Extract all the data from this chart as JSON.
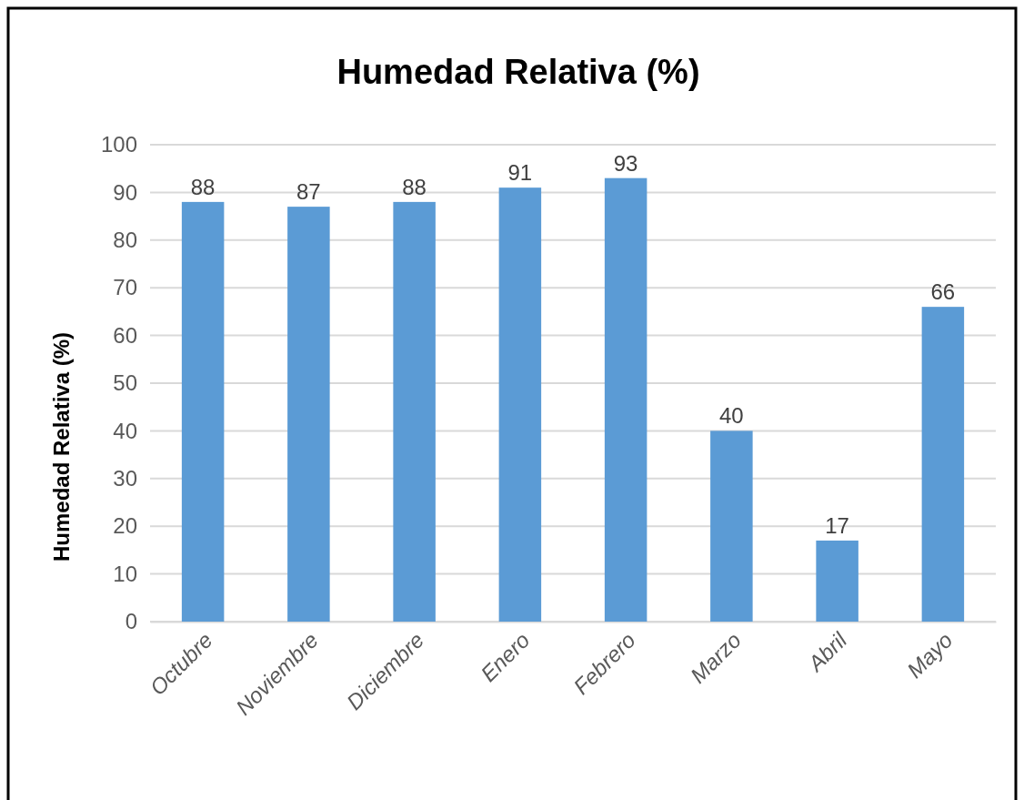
{
  "chart_data": {
    "type": "bar",
    "title": "Humedad Relativa (%)",
    "ylabel": "Humedad Relativa (%)",
    "categories": [
      "Octubre",
      "Noviembre",
      "Diciembre",
      "Enero",
      "Febrero",
      "Marzo",
      "Abril",
      "Mayo"
    ],
    "values": [
      88,
      87,
      88,
      91,
      93,
      40,
      17,
      66
    ],
    "color": "#5b9bd5",
    "ylim": [
      0,
      100
    ],
    "yticks": [
      0,
      10,
      20,
      30,
      40,
      50,
      60,
      70,
      80,
      90,
      100
    ],
    "grid": "y",
    "data_labels": true
  }
}
